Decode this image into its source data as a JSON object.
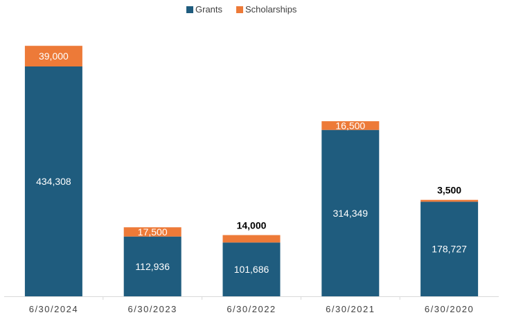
{
  "chart_data": {
    "type": "bar",
    "stacked": true,
    "title": "",
    "xlabel": "",
    "ylabel": "",
    "ylim": [
      0,
      500000
    ],
    "grid": false,
    "legend_position": "top-center",
    "categories": [
      "6/30/2024",
      "6/30/2023",
      "6/30/2022",
      "6/30/2021",
      "6/30/2020"
    ],
    "series": [
      {
        "name": "Grants",
        "color": "#1f5c7e",
        "values": [
          434308,
          112936,
          101686,
          314349,
          178727
        ],
        "labels": [
          "434,308",
          "112,936",
          "101,686",
          "314,349",
          "178,727"
        ]
      },
      {
        "name": "Scholarships",
        "color": "#ed7a38",
        "values": [
          39000,
          17500,
          14000,
          16500,
          3500
        ],
        "labels": [
          "39,000",
          "17,500",
          "14,000",
          "16,500",
          "3,500"
        ]
      }
    ]
  }
}
